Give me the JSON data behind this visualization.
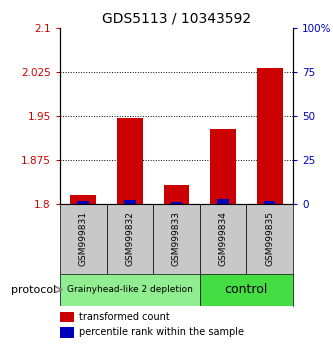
{
  "title": "GDS5113 / 10343592",
  "samples": [
    "GSM999831",
    "GSM999832",
    "GSM999833",
    "GSM999834",
    "GSM999835"
  ],
  "red_values": [
    1.815,
    1.946,
    1.832,
    1.928,
    2.032
  ],
  "blue_values": [
    1.2,
    2.0,
    0.8,
    2.5,
    1.5
  ],
  "ylim_left": [
    1.8,
    2.1
  ],
  "ylim_right": [
    0,
    100
  ],
  "yticks_left": [
    1.8,
    1.875,
    1.95,
    2.025,
    2.1
  ],
  "ytick_labels_left": [
    "1.8",
    "1.875",
    "1.95",
    "2.025",
    "2.1"
  ],
  "yticks_right": [
    0,
    25,
    50,
    75,
    100
  ],
  "ytick_labels_right": [
    "0",
    "25",
    "50",
    "75",
    "100%"
  ],
  "dotted_yticks": [
    1.875,
    1.95,
    2.025
  ],
  "groups": [
    {
      "label": "Grainyhead-like 2 depletion",
      "indices": [
        0,
        1,
        2
      ],
      "color": "#90EE90",
      "text_size": 6.5
    },
    {
      "label": "control",
      "indices": [
        3,
        4
      ],
      "color": "#44DD44",
      "text_size": 9
    }
  ],
  "group_label": "protocol",
  "red_color": "#CC0000",
  "blue_color": "#0000BB",
  "legend_labels": [
    "transformed count",
    "percentile rank within the sample"
  ],
  "ylabel_left_color": "#CC0000",
  "ylabel_right_color": "#0000BB",
  "title_fontsize": 10,
  "tick_fontsize": 7.5,
  "sample_label_fontsize": 6.5,
  "sample_box_color": "#C8C8C8",
  "bar_width": 0.55
}
